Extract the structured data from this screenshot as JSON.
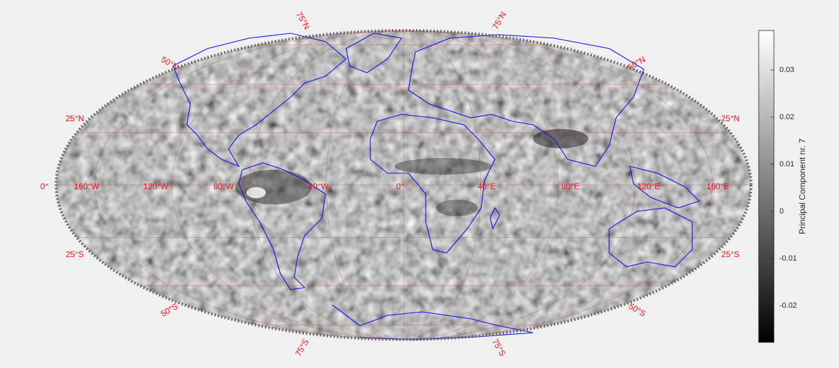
{
  "map": {
    "meridian_labels": [
      "0°",
      "160°W",
      "120°W",
      "80°W",
      "40°W",
      "0°",
      "40°E",
      "80°E",
      "120°E",
      "160°E"
    ],
    "parallel_labels_west": [
      "75°N",
      "50°N",
      "25°N",
      "25°S",
      "50°S",
      "75°S"
    ],
    "parallel_labels_east": [
      "75°N",
      "50°N",
      "25°N",
      "25°S",
      "50°S",
      "75°S"
    ]
  },
  "colorbar": {
    "label": "Principal Component nr. 7",
    "clim": [
      -0.0278,
      0.0384
    ],
    "ticks": [
      -0.02,
      -0.01,
      0,
      0.01,
      0.02,
      0.03
    ]
  }
}
